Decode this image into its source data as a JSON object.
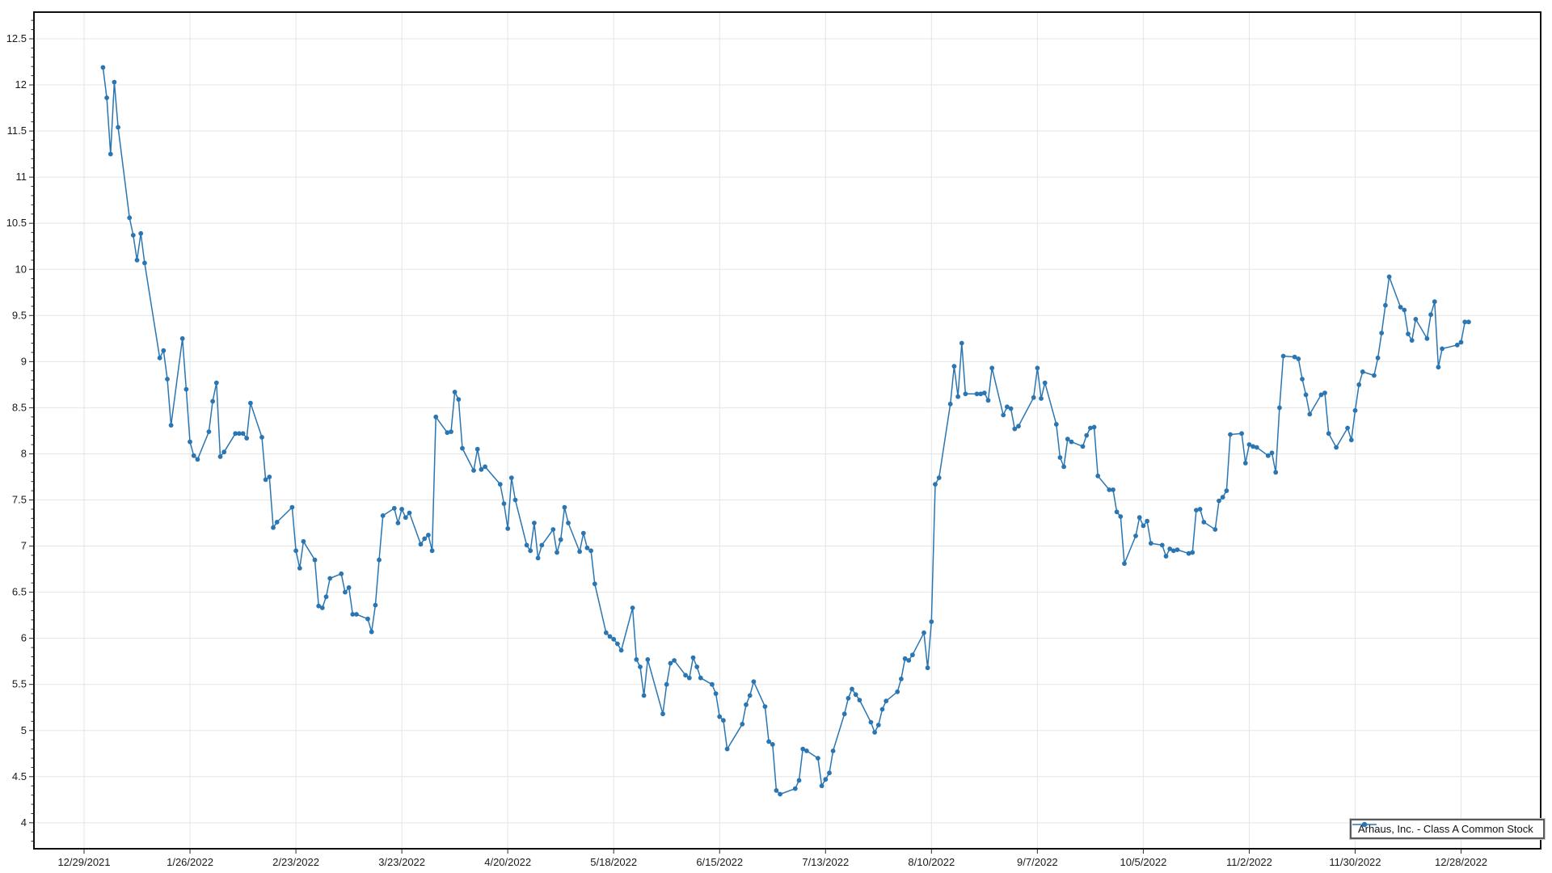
{
  "chart_data": {
    "type": "line",
    "title": "",
    "xlabel": "",
    "ylabel": "",
    "grid": true,
    "legend": {
      "label": "Arhaus, Inc. - Class A Common Stock",
      "position": "bottom-right"
    },
    "colors": {
      "line": "#2a76b2",
      "marker": "#2a76b2",
      "grid": "#e5e5e5",
      "border": "#0f0f0f",
      "tick": "#2b2b2b",
      "label": "#1a1a1a",
      "legend_border": "#5a5a5a",
      "legend_outer": "#c9c9c9"
    },
    "x_axis": {
      "epoch": "12/29/2021",
      "tick_interval_days": 28,
      "tick_labels": [
        "12/29/2021",
        "1/26/2022",
        "2/23/2022",
        "3/23/2022",
        "4/20/2022",
        "5/18/2022",
        "6/15/2022",
        "7/13/2022",
        "8/10/2022",
        "9/7/2022",
        "10/5/2022",
        "11/2/2022",
        "11/30/2022",
        "12/28/2022"
      ]
    },
    "y_axis": {
      "min": 4,
      "max": 12.5,
      "step": 0.5,
      "minor_step": 0.1,
      "tick_labels": [
        "12.5",
        "12",
        "11.5",
        "11",
        "10.5",
        "10",
        "9.5",
        "9",
        "8.5",
        "8",
        "7.5",
        "7",
        "6.5",
        "6",
        "5.5",
        "5",
        "4.5",
        "4"
      ]
    },
    "series": [
      {
        "name": "Arhaus, Inc. - Class A Common Stock",
        "points": [
          [
            "1/3/2022",
            12.19
          ],
          [
            "1/4/2022",
            11.86
          ],
          [
            "1/5/2022",
            11.25
          ],
          [
            "1/6/2022",
            12.03
          ],
          [
            "1/7/2022",
            11.54
          ],
          [
            "1/10/2022",
            10.56
          ],
          [
            "1/11/2022",
            10.37
          ],
          [
            "1/12/2022",
            10.1
          ],
          [
            "1/13/2022",
            10.39
          ],
          [
            "1/14/2022",
            10.07
          ],
          [
            "1/18/2022",
            9.04
          ],
          [
            "1/19/2022",
            9.12
          ],
          [
            "1/20/2022",
            8.81
          ],
          [
            "1/21/2022",
            8.31
          ],
          [
            "1/24/2022",
            9.25
          ],
          [
            "1/25/2022",
            8.7
          ],
          [
            "1/26/2022",
            8.13
          ],
          [
            "1/27/2022",
            7.98
          ],
          [
            "1/28/2022",
            7.94
          ],
          [
            "1/31/2022",
            8.24
          ],
          [
            "2/1/2022",
            8.57
          ],
          [
            "2/2/2022",
            8.77
          ],
          [
            "2/3/2022",
            7.97
          ],
          [
            "2/4/2022",
            8.02
          ],
          [
            "2/7/2022",
            8.22
          ],
          [
            "2/8/2022",
            8.22
          ],
          [
            "2/9/2022",
            8.22
          ],
          [
            "2/10/2022",
            8.17
          ],
          [
            "2/11/2022",
            8.55
          ],
          [
            "2/14/2022",
            8.18
          ],
          [
            "2/15/2022",
            7.72
          ],
          [
            "2/16/2022",
            7.75
          ],
          [
            "2/17/2022",
            7.2
          ],
          [
            "2/18/2022",
            7.26
          ],
          [
            "2/22/2022",
            7.42
          ],
          [
            "2/23/2022",
            6.95
          ],
          [
            "2/24/2022",
            6.76
          ],
          [
            "2/25/2022",
            7.05
          ],
          [
            "2/28/2022",
            6.85
          ],
          [
            "3/1/2022",
            6.35
          ],
          [
            "3/2/2022",
            6.33
          ],
          [
            "3/3/2022",
            6.45
          ],
          [
            "3/4/2022",
            6.65
          ],
          [
            "3/7/2022",
            6.7
          ],
          [
            "3/8/2022",
            6.5
          ],
          [
            "3/9/2022",
            6.55
          ],
          [
            "3/10/2022",
            6.26
          ],
          [
            "3/11/2022",
            6.26
          ],
          [
            "3/14/2022",
            6.21
          ],
          [
            "3/15/2022",
            6.07
          ],
          [
            "3/16/2022",
            6.36
          ],
          [
            "3/17/2022",
            6.85
          ],
          [
            "3/18/2022",
            7.33
          ],
          [
            "3/21/2022",
            7.41
          ],
          [
            "3/22/2022",
            7.25
          ],
          [
            "3/23/2022",
            7.4
          ],
          [
            "3/24/2022",
            7.31
          ],
          [
            "3/25/2022",
            7.36
          ],
          [
            "3/28/2022",
            7.02
          ],
          [
            "3/29/2022",
            7.08
          ],
          [
            "3/30/2022",
            7.12
          ],
          [
            "3/31/2022",
            6.95
          ],
          [
            "4/1/2022",
            8.4
          ],
          [
            "4/4/2022",
            8.23
          ],
          [
            "4/5/2022",
            8.24
          ],
          [
            "4/6/2022",
            8.67
          ],
          [
            "4/7/2022",
            8.59
          ],
          [
            "4/8/2022",
            8.06
          ],
          [
            "4/11/2022",
            7.82
          ],
          [
            "4/12/2022",
            8.05
          ],
          [
            "4/13/2022",
            7.83
          ],
          [
            "4/14/2022",
            7.86
          ],
          [
            "4/18/2022",
            7.67
          ],
          [
            "4/19/2022",
            7.46
          ],
          [
            "4/20/2022",
            7.19
          ],
          [
            "4/21/2022",
            7.74
          ],
          [
            "4/22/2022",
            7.5
          ],
          [
            "4/25/2022",
            7.01
          ],
          [
            "4/26/2022",
            6.95
          ],
          [
            "4/27/2022",
            7.25
          ],
          [
            "4/28/2022",
            6.87
          ],
          [
            "4/29/2022",
            7.01
          ],
          [
            "5/2/2022",
            7.18
          ],
          [
            "5/3/2022",
            6.93
          ],
          [
            "5/4/2022",
            7.07
          ],
          [
            "5/5/2022",
            7.42
          ],
          [
            "5/6/2022",
            7.25
          ],
          [
            "5/9/2022",
            6.94
          ],
          [
            "5/10/2022",
            7.14
          ],
          [
            "5/11/2022",
            6.98
          ],
          [
            "5/12/2022",
            6.95
          ],
          [
            "5/13/2022",
            6.59
          ],
          [
            "5/16/2022",
            6.06
          ],
          [
            "5/17/2022",
            6.02
          ],
          [
            "5/18/2022",
            5.99
          ],
          [
            "5/19/2022",
            5.94
          ],
          [
            "5/20/2022",
            5.87
          ],
          [
            "5/23/2022",
            6.33
          ],
          [
            "5/24/2022",
            5.77
          ],
          [
            "5/25/2022",
            5.69
          ],
          [
            "5/26/2022",
            5.38
          ],
          [
            "5/27/2022",
            5.77
          ],
          [
            "5/31/2022",
            5.18
          ],
          [
            "6/1/2022",
            5.5
          ],
          [
            "6/2/2022",
            5.73
          ],
          [
            "6/3/2022",
            5.76
          ],
          [
            "6/6/2022",
            5.6
          ],
          [
            "6/7/2022",
            5.57
          ],
          [
            "6/8/2022",
            5.79
          ],
          [
            "6/9/2022",
            5.69
          ],
          [
            "6/10/2022",
            5.57
          ],
          [
            "6/13/2022",
            5.5
          ],
          [
            "6/14/2022",
            5.4
          ],
          [
            "6/15/2022",
            5.15
          ],
          [
            "6/16/2022",
            5.11
          ],
          [
            "6/17/2022",
            4.8
          ],
          [
            "6/21/2022",
            5.07
          ],
          [
            "6/22/2022",
            5.28
          ],
          [
            "6/23/2022",
            5.38
          ],
          [
            "6/24/2022",
            5.53
          ],
          [
            "6/27/2022",
            5.26
          ],
          [
            "6/28/2022",
            4.88
          ],
          [
            "6/29/2022",
            4.85
          ],
          [
            "6/30/2022",
            4.35
          ],
          [
            "7/1/2022",
            4.31
          ],
          [
            "7/5/2022",
            4.37
          ],
          [
            "7/6/2022",
            4.46
          ],
          [
            "7/7/2022",
            4.8
          ],
          [
            "7/8/2022",
            4.78
          ],
          [
            "7/11/2022",
            4.7
          ],
          [
            "7/12/2022",
            4.4
          ],
          [
            "7/13/2022",
            4.47
          ],
          [
            "7/14/2022",
            4.54
          ],
          [
            "7/15/2022",
            4.78
          ],
          [
            "7/18/2022",
            5.18
          ],
          [
            "7/19/2022",
            5.35
          ],
          [
            "7/20/2022",
            5.45
          ],
          [
            "7/21/2022",
            5.39
          ],
          [
            "7/22/2022",
            5.33
          ],
          [
            "7/25/2022",
            5.09
          ],
          [
            "7/26/2022",
            4.98
          ],
          [
            "7/27/2022",
            5.06
          ],
          [
            "7/28/2022",
            5.23
          ],
          [
            "7/29/2022",
            5.32
          ],
          [
            "8/1/2022",
            5.42
          ],
          [
            "8/2/2022",
            5.56
          ],
          [
            "8/3/2022",
            5.78
          ],
          [
            "8/4/2022",
            5.76
          ],
          [
            "8/5/2022",
            5.82
          ],
          [
            "8/8/2022",
            6.06
          ],
          [
            "8/9/2022",
            5.68
          ],
          [
            "8/10/2022",
            6.18
          ],
          [
            "8/11/2022",
            7.67
          ],
          [
            "8/12/2022",
            7.74
          ],
          [
            "8/15/2022",
            8.54
          ],
          [
            "8/16/2022",
            8.95
          ],
          [
            "8/17/2022",
            8.62
          ],
          [
            "8/18/2022",
            9.2
          ],
          [
            "8/19/2022",
            8.65
          ],
          [
            "8/22/2022",
            8.65
          ],
          [
            "8/23/2022",
            8.65
          ],
          [
            "8/24/2022",
            8.66
          ],
          [
            "8/25/2022",
            8.58
          ],
          [
            "8/26/2022",
            8.93
          ],
          [
            "8/29/2022",
            8.42
          ],
          [
            "8/30/2022",
            8.51
          ],
          [
            "8/31/2022",
            8.49
          ],
          [
            "9/1/2022",
            8.27
          ],
          [
            "9/2/2022",
            8.3
          ],
          [
            "9/6/2022",
            8.61
          ],
          [
            "9/7/2022",
            8.93
          ],
          [
            "9/8/2022",
            8.6
          ],
          [
            "9/9/2022",
            8.77
          ],
          [
            "9/12/2022",
            8.32
          ],
          [
            "9/13/2022",
            7.96
          ],
          [
            "9/14/2022",
            7.86
          ],
          [
            "9/15/2022",
            8.16
          ],
          [
            "9/16/2022",
            8.13
          ],
          [
            "9/19/2022",
            8.08
          ],
          [
            "9/20/2022",
            8.2
          ],
          [
            "9/21/2022",
            8.28
          ],
          [
            "9/22/2022",
            8.29
          ],
          [
            "9/23/2022",
            7.76
          ],
          [
            "9/26/2022",
            7.61
          ],
          [
            "9/27/2022",
            7.61
          ],
          [
            "9/28/2022",
            7.37
          ],
          [
            "9/29/2022",
            7.32
          ],
          [
            "9/30/2022",
            6.81
          ],
          [
            "10/3/2022",
            7.11
          ],
          [
            "10/4/2022",
            7.31
          ],
          [
            "10/5/2022",
            7.22
          ],
          [
            "10/6/2022",
            7.27
          ],
          [
            "10/7/2022",
            7.03
          ],
          [
            "10/10/2022",
            7.01
          ],
          [
            "10/11/2022",
            6.89
          ],
          [
            "10/12/2022",
            6.97
          ],
          [
            "10/13/2022",
            6.95
          ],
          [
            "10/14/2022",
            6.96
          ],
          [
            "10/17/2022",
            6.92
          ],
          [
            "10/18/2022",
            6.93
          ],
          [
            "10/19/2022",
            7.39
          ],
          [
            "10/20/2022",
            7.4
          ],
          [
            "10/21/2022",
            7.26
          ],
          [
            "10/24/2022",
            7.18
          ],
          [
            "10/25/2022",
            7.49
          ],
          [
            "10/26/2022",
            7.53
          ],
          [
            "10/27/2022",
            7.6
          ],
          [
            "10/28/2022",
            8.21
          ],
          [
            "10/31/2022",
            8.22
          ],
          [
            "11/1/2022",
            7.9
          ],
          [
            "11/2/2022",
            8.1
          ],
          [
            "11/3/2022",
            8.08
          ],
          [
            "11/4/2022",
            8.07
          ],
          [
            "11/7/2022",
            7.98
          ],
          [
            "11/8/2022",
            8.01
          ],
          [
            "11/9/2022",
            7.8
          ],
          [
            "11/10/2022",
            8.5
          ],
          [
            "11/11/2022",
            9.06
          ],
          [
            "11/14/2022",
            9.05
          ],
          [
            "11/15/2022",
            9.03
          ],
          [
            "11/16/2022",
            8.81
          ],
          [
            "11/17/2022",
            8.64
          ],
          [
            "11/18/2022",
            8.43
          ],
          [
            "11/21/2022",
            8.64
          ],
          [
            "11/22/2022",
            8.66
          ],
          [
            "11/23/2022",
            8.22
          ],
          [
            "11/25/2022",
            8.07
          ],
          [
            "11/28/2022",
            8.28
          ],
          [
            "11/29/2022",
            8.15
          ],
          [
            "11/30/2022",
            8.47
          ],
          [
            "12/1/2022",
            8.75
          ],
          [
            "12/2/2022",
            8.89
          ],
          [
            "12/5/2022",
            8.85
          ],
          [
            "12/6/2022",
            9.04
          ],
          [
            "12/7/2022",
            9.31
          ],
          [
            "12/8/2022",
            9.61
          ],
          [
            "12/9/2022",
            9.92
          ],
          [
            "12/12/2022",
            9.59
          ],
          [
            "12/13/2022",
            9.56
          ],
          [
            "12/14/2022",
            9.3
          ],
          [
            "12/15/2022",
            9.23
          ],
          [
            "12/16/2022",
            9.46
          ],
          [
            "12/19/2022",
            9.25
          ],
          [
            "12/20/2022",
            9.51
          ],
          [
            "12/21/2022",
            9.65
          ],
          [
            "12/22/2022",
            8.94
          ],
          [
            "12/23/2022",
            9.14
          ],
          [
            "12/27/2022",
            9.18
          ],
          [
            "12/28/2022",
            9.21
          ],
          [
            "12/29/2022",
            9.43
          ],
          [
            "12/30/2022",
            9.43
          ]
        ]
      }
    ]
  }
}
